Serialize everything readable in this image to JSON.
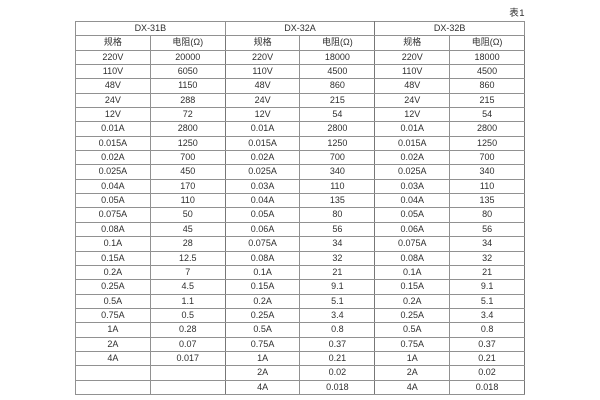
{
  "page": {
    "caption": "表1"
  },
  "table": {
    "groups": [
      "DX-31B",
      "DX-32A",
      "DX-32B"
    ],
    "column_headers": {
      "spec": "规格",
      "resistance": "电阻(Ω)"
    },
    "rows": [
      [
        "220V",
        "20000",
        "220V",
        "18000",
        "220V",
        "18000"
      ],
      [
        "110V",
        "6050",
        "110V",
        "4500",
        "110V",
        "4500"
      ],
      [
        "48V",
        "1150",
        "48V",
        "860",
        "48V",
        "860"
      ],
      [
        "24V",
        "288",
        "24V",
        "215",
        "24V",
        "215"
      ],
      [
        "12V",
        "72",
        "12V",
        "54",
        "12V",
        "54"
      ],
      [
        "0.01A",
        "2800",
        "0.01A",
        "2800",
        "0.01A",
        "2800"
      ],
      [
        "0.015A",
        "1250",
        "0.015A",
        "1250",
        "0.015A",
        "1250"
      ],
      [
        "0.02A",
        "700",
        "0.02A",
        "700",
        "0.02A",
        "700"
      ],
      [
        "0.025A",
        "450",
        "0.025A",
        "340",
        "0.025A",
        "340"
      ],
      [
        "0.04A",
        "170",
        "0.03A",
        "110",
        "0.03A",
        "110"
      ],
      [
        "0.05A",
        "110",
        "0.04A",
        "135",
        "0.04A",
        "135"
      ],
      [
        "0.075A",
        "50",
        "0.05A",
        "80",
        "0.05A",
        "80"
      ],
      [
        "0.08A",
        "45",
        "0.06A",
        "56",
        "0.06A",
        "56"
      ],
      [
        "0.1A",
        "28",
        "0.075A",
        "34",
        "0.075A",
        "34"
      ],
      [
        "0.15A",
        "12.5",
        "0.08A",
        "32",
        "0.08A",
        "32"
      ],
      [
        "0.2A",
        "7",
        "0.1A",
        "21",
        "0.1A",
        "21"
      ],
      [
        "0.25A",
        "4.5",
        "0.15A",
        "9.1",
        "0.15A",
        "9.1"
      ],
      [
        "0.5A",
        "1.1",
        "0.2A",
        "5.1",
        "0.2A",
        "5.1"
      ],
      [
        "0.75A",
        "0.5",
        "0.25A",
        "3.4",
        "0.25A",
        "3.4"
      ],
      [
        "1A",
        "0.28",
        "0.5A",
        "0.8",
        "0.5A",
        "0.8"
      ],
      [
        "2A",
        "0.07",
        "0.75A",
        "0.37",
        "0.75A",
        "0.37"
      ],
      [
        "4A",
        "0.017",
        "1A",
        "0.21",
        "1A",
        "0.21"
      ],
      [
        "",
        "",
        "2A",
        "0.02",
        "2A",
        "0.02"
      ],
      [
        "",
        "",
        "4A",
        "0.018",
        "4A",
        "0.018"
      ]
    ],
    "colors": {
      "background": "#ffffff",
      "border": "#919191",
      "group_border": "#777777",
      "text": "#2f2f2f"
    }
  }
}
